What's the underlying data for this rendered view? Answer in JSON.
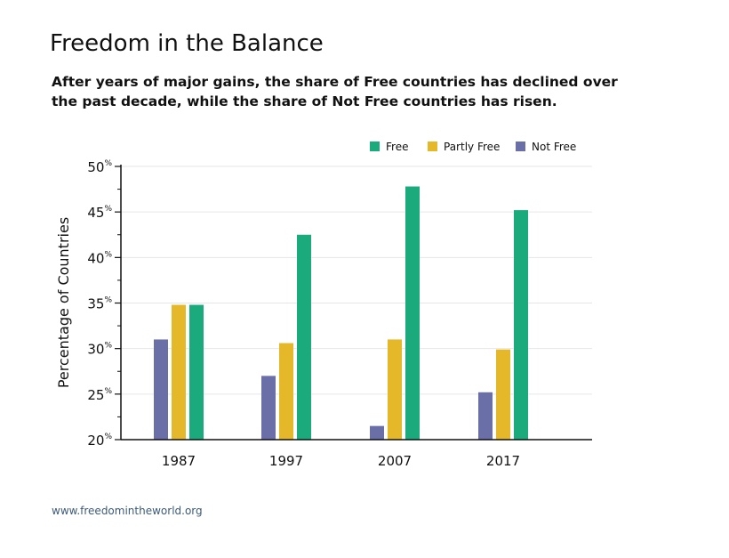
{
  "title": "Freedom in the Balance",
  "subtitle": "After years of major gains, the share of Free countries has declined over the past decade, while the share of Not Free countries has risen.",
  "source": "www.freedomintheworld.org",
  "chart_data": {
    "type": "bar",
    "categories": [
      "1987",
      "1997",
      "2007",
      "2017"
    ],
    "series": [
      {
        "name": "Not Free",
        "color": "#6b6fa8",
        "values": [
          31,
          27,
          21.5,
          25.2
        ]
      },
      {
        "name": "Partly Free",
        "color": "#e5b829",
        "values": [
          34.8,
          30.6,
          31,
          29.9
        ]
      },
      {
        "name": "Free",
        "color": "#1aaa7c",
        "values": [
          34.8,
          42.5,
          47.8,
          45.2
        ]
      }
    ],
    "legend_order": [
      "Free",
      "Partly Free",
      "Not Free"
    ],
    "legend_position": "top-right",
    "ylabel": "Percentage of Countries",
    "xlabel": "",
    "ylim": [
      20,
      50
    ],
    "yticks": [
      20,
      25,
      30,
      35,
      40,
      45,
      50
    ],
    "ytick_suffix": "%",
    "grid": true
  }
}
